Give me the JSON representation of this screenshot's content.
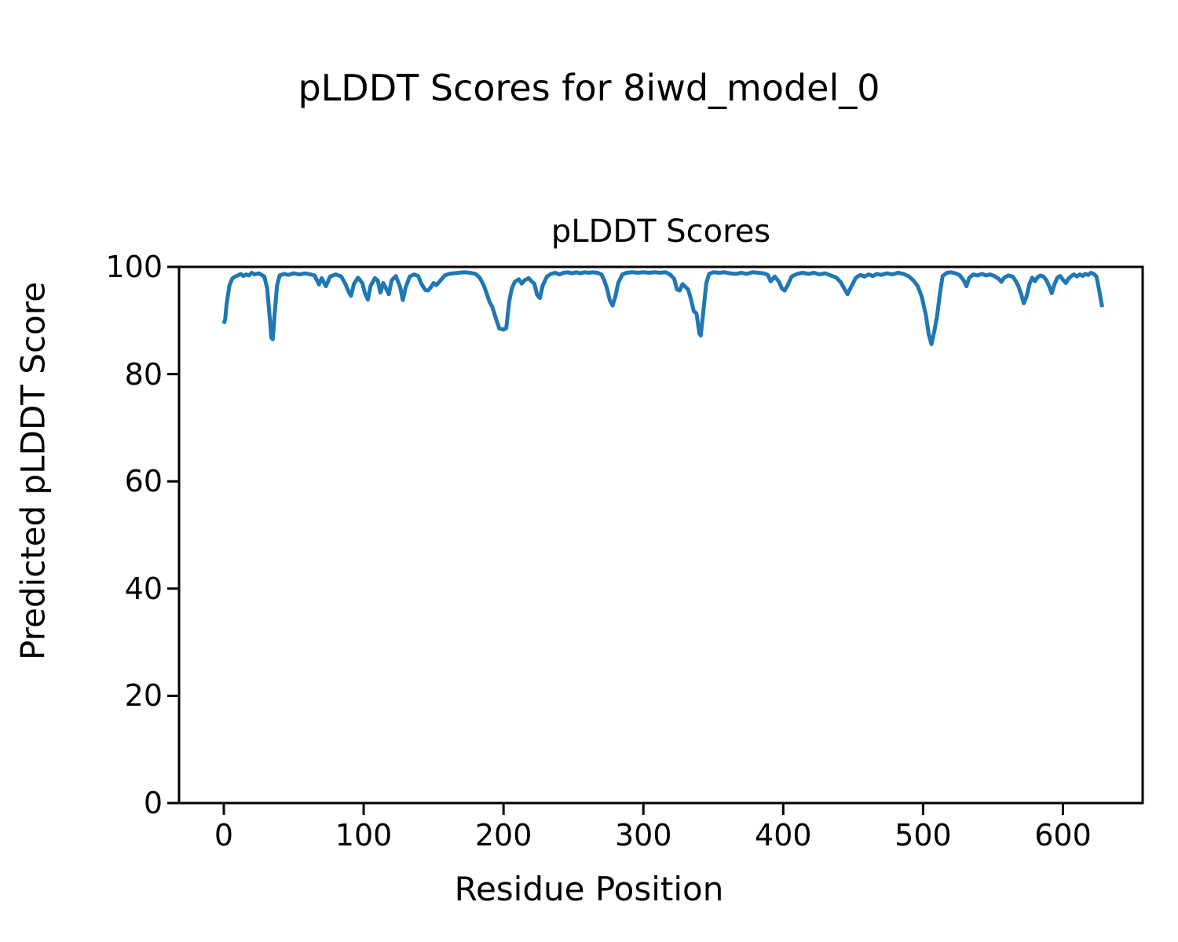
{
  "figure": {
    "suptitle": "pLDDT Scores for 8iwd_model_0",
    "axes_title": "pLDDT Scores",
    "xlabel": "Residue Position",
    "ylabel": "Predicted pLDDT Score"
  },
  "colors": {
    "line": "#1f77b4",
    "spine": "#000000",
    "background": "#ffffff",
    "text": "#000000"
  },
  "chart_data": {
    "type": "line",
    "title": "pLDDT Scores",
    "xlabel": "Residue Position",
    "ylabel": "Predicted pLDDT Score",
    "xlim": [
      -32,
      657
    ],
    "ylim": [
      0,
      100
    ],
    "xticks": [
      0,
      100,
      200,
      300,
      400,
      500,
      600
    ],
    "yticks": [
      0,
      20,
      40,
      60,
      80,
      100
    ],
    "grid": false,
    "legend": false,
    "line_width": 5,
    "series": [
      {
        "name": "pLDDT",
        "color": "#1f77b4",
        "x": [
          0,
          1,
          2,
          4,
          6,
          8,
          10,
          12,
          14,
          16,
          18,
          20,
          22,
          25,
          27,
          29,
          31,
          33,
          34,
          35,
          36,
          38,
          40,
          43,
          46,
          50,
          54,
          58,
          62,
          65,
          68,
          70,
          73,
          76,
          80,
          84,
          87,
          89,
          91,
          93,
          96,
          99,
          101,
          103,
          105,
          108,
          110,
          112,
          114,
          116,
          118,
          120,
          123,
          126,
          128,
          130,
          133,
          136,
          139,
          141,
          144,
          146,
          148,
          150,
          152,
          155,
          158,
          161,
          164,
          168,
          172,
          176,
          180,
          183,
          186,
          188,
          190,
          192,
          195,
          197,
          200,
          202,
          204,
          206,
          208,
          211,
          213,
          215,
          218,
          220,
          222,
          224,
          226,
          228,
          231,
          234,
          237,
          240,
          243,
          246,
          249,
          252,
          255,
          258,
          261,
          264,
          267,
          270,
          272,
          274,
          276,
          278,
          280,
          282,
          285,
          288,
          292,
          296,
          300,
          304,
          308,
          312,
          316,
          319,
          322,
          324,
          326,
          328,
          330,
          332,
          334,
          336,
          338,
          339,
          340,
          341,
          343,
          345,
          347,
          350,
          354,
          358,
          362,
          366,
          370,
          374,
          378,
          382,
          386,
          389,
          391,
          394,
          397,
          399,
          401,
          403,
          406,
          410,
          414,
          418,
          422,
          426,
          430,
          434,
          438,
          441,
          444,
          446,
          449,
          452,
          455,
          458,
          461,
          464,
          467,
          470,
          474,
          478,
          482,
          486,
          490,
          493,
          496,
          499,
          502,
          504,
          506,
          508,
          510,
          512,
          514,
          517,
          520,
          523,
          526,
          529,
          531,
          533,
          536,
          539,
          542,
          545,
          548,
          551,
          554,
          556,
          558,
          561,
          564,
          566,
          568,
          570,
          572,
          574,
          576,
          578,
          580,
          582,
          584,
          586,
          588,
          590,
          592,
          594,
          596,
          598,
          600,
          602,
          604,
          606,
          608,
          610,
          612,
          614,
          616,
          618,
          620,
          622,
          624,
          626,
          628
        ],
        "y": [
          89.4,
          90.3,
          93.0,
          96.5,
          97.8,
          98.2,
          98.4,
          98.7,
          98.3,
          98.6,
          98.4,
          98.9,
          98.6,
          98.8,
          98.5,
          98.2,
          96.0,
          90.0,
          86.8,
          86.5,
          90.0,
          96.5,
          98.4,
          98.7,
          98.5,
          98.8,
          98.6,
          98.8,
          98.6,
          98.4,
          96.7,
          97.9,
          96.4,
          98.2,
          98.6,
          98.2,
          96.8,
          95.5,
          94.6,
          96.8,
          98.0,
          97.0,
          95.0,
          93.9,
          96.5,
          97.9,
          97.5,
          95.2,
          97.0,
          96.0,
          94.9,
          97.5,
          98.3,
          96.3,
          93.8,
          96.2,
          98.2,
          98.6,
          98.3,
          97.0,
          95.7,
          95.6,
          96.2,
          97.0,
          96.6,
          97.5,
          98.4,
          98.7,
          98.8,
          98.9,
          99.0,
          98.9,
          98.7,
          98.0,
          96.5,
          95.0,
          93.5,
          92.5,
          90.0,
          88.5,
          88.3,
          88.6,
          93.5,
          96.0,
          97.2,
          97.7,
          96.9,
          97.5,
          97.9,
          97.3,
          96.9,
          94.8,
          94.2,
          96.5,
          98.2,
          98.7,
          98.9,
          98.6,
          98.9,
          99.0,
          98.8,
          99.0,
          98.8,
          99.0,
          98.9,
          99.0,
          98.9,
          98.6,
          97.5,
          96.0,
          93.8,
          92.8,
          94.5,
          97.0,
          98.6,
          98.9,
          99.0,
          98.9,
          99.0,
          98.9,
          99.0,
          98.9,
          99.0,
          98.6,
          97.8,
          95.8,
          95.6,
          96.8,
          96.3,
          95.8,
          94.0,
          91.8,
          91.3,
          89.5,
          87.6,
          87.2,
          92.0,
          97.0,
          98.7,
          99.0,
          98.9,
          99.0,
          98.8,
          98.7,
          98.9,
          98.7,
          99.0,
          98.9,
          98.8,
          98.5,
          97.3,
          98.2,
          97.2,
          96.0,
          95.6,
          96.5,
          98.2,
          98.7,
          98.9,
          98.7,
          98.9,
          98.6,
          98.8,
          98.4,
          98.0,
          97.2,
          95.8,
          94.9,
          96.5,
          98.0,
          98.5,
          98.2,
          98.6,
          98.3,
          98.7,
          98.5,
          98.8,
          98.6,
          98.9,
          98.7,
          98.2,
          97.5,
          96.5,
          94.5,
          91.0,
          87.5,
          85.6,
          88.0,
          90.8,
          95.0,
          98.3,
          98.9,
          99.0,
          98.8,
          98.5,
          97.5,
          96.4,
          98.0,
          98.6,
          98.4,
          98.7,
          98.4,
          98.6,
          98.3,
          97.8,
          97.2,
          98.0,
          98.4,
          98.2,
          97.5,
          96.5,
          95.0,
          93.2,
          94.5,
          96.8,
          98.0,
          97.3,
          98.1,
          98.4,
          98.2,
          97.6,
          96.5,
          95.1,
          96.8,
          98.0,
          98.3,
          97.6,
          97.0,
          97.8,
          98.3,
          98.6,
          98.2,
          98.6,
          98.3,
          98.7,
          98.5,
          98.9,
          98.7,
          98.2,
          95.5,
          92.5
        ]
      }
    ]
  }
}
